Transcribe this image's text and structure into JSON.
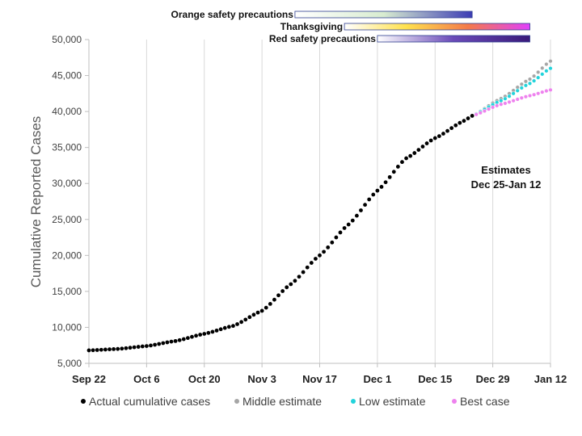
{
  "chart_data": {
    "type": "scatter",
    "ylabel": "Cumulative Reported Cases",
    "xlabel": "",
    "xlim": [
      "2020-09-22",
      "2021-01-12"
    ],
    "ylim": [
      5000,
      50000
    ],
    "y_ticks": [
      5000,
      10000,
      15000,
      20000,
      25000,
      30000,
      35000,
      40000,
      45000,
      50000
    ],
    "y_tick_labels": [
      "5,000",
      "10,000",
      "15,000",
      "20,000",
      "25,000",
      "30,000",
      "35,000",
      "40,000",
      "45,000",
      "50,000"
    ],
    "x_ticks": [
      "2020-09-22",
      "2020-10-06",
      "2020-10-20",
      "2020-11-03",
      "2020-11-17",
      "2020-12-01",
      "2020-12-15",
      "2020-12-29",
      "2021-01-12"
    ],
    "x_tick_labels": [
      "Sep 22",
      "Oct 6",
      "Oct 20",
      "Nov 3",
      "Nov 17",
      "Dec 1",
      "Dec 15",
      "Dec 29",
      "Jan 12"
    ],
    "grid": "vertical",
    "legend_position": "bottom",
    "annotation": [
      "Estimates",
      "Dec 25-Jan 12"
    ],
    "series": [
      {
        "name": "Actual cumulative cases",
        "color": "#000000",
        "anchors": [
          {
            "x": "2020-09-22",
            "y": 6800
          },
          {
            "x": "2020-09-29",
            "y": 7000
          },
          {
            "x": "2020-10-06",
            "y": 7400
          },
          {
            "x": "2020-10-13",
            "y": 8100
          },
          {
            "x": "2020-10-20",
            "y": 9100
          },
          {
            "x": "2020-10-27",
            "y": 10200
          },
          {
            "x": "2020-11-03",
            "y": 12300
          },
          {
            "x": "2020-11-10",
            "y": 16000
          },
          {
            "x": "2020-11-17",
            "y": 20000
          },
          {
            "x": "2020-11-24",
            "y": 24300
          },
          {
            "x": "2020-12-01",
            "y": 29000
          },
          {
            "x": "2020-12-08",
            "y": 33500
          },
          {
            "x": "2020-12-15",
            "y": 36300
          },
          {
            "x": "2020-12-22",
            "y": 38700
          },
          {
            "x": "2020-12-24",
            "y": 39400
          }
        ]
      },
      {
        "name": "Middle estimate",
        "color": "#a6a6a6",
        "anchors": [
          {
            "x": "2020-12-24",
            "y": 39400
          },
          {
            "x": "2020-12-31",
            "y": 41800
          },
          {
            "x": "2021-01-07",
            "y": 44500
          },
          {
            "x": "2021-01-12",
            "y": 47000
          }
        ]
      },
      {
        "name": "Low estimate",
        "color": "#22d3db",
        "anchors": [
          {
            "x": "2020-12-24",
            "y": 39400
          },
          {
            "x": "2020-12-31",
            "y": 41500
          },
          {
            "x": "2021-01-07",
            "y": 43900
          },
          {
            "x": "2021-01-12",
            "y": 46000
          }
        ]
      },
      {
        "name": "Best case",
        "color": "#ee82ee",
        "anchors": [
          {
            "x": "2020-12-24",
            "y": 39400
          },
          {
            "x": "2020-12-31",
            "y": 41000
          },
          {
            "x": "2021-01-07",
            "y": 42200
          },
          {
            "x": "2021-01-12",
            "y": 43000
          }
        ]
      }
    ],
    "bars": [
      {
        "label": "Orange safety precautions",
        "start": "2020-11-11",
        "end": "2020-12-24",
        "colors": [
          "#ffffff",
          "#d8ecd0",
          "#3c3cb4"
        ]
      },
      {
        "label": "Thanksgiving",
        "start": "2020-11-23",
        "end": "2021-01-07",
        "colors": [
          "#ffffff",
          "#ffe14d",
          "#f47a4a",
          "#e040fb"
        ]
      },
      {
        "label": "Red safety precautions",
        "start": "2020-12-01",
        "end": "2021-01-07",
        "colors": [
          "#ffffff",
          "#6a4ab8",
          "#3a1a7a"
        ]
      }
    ]
  }
}
